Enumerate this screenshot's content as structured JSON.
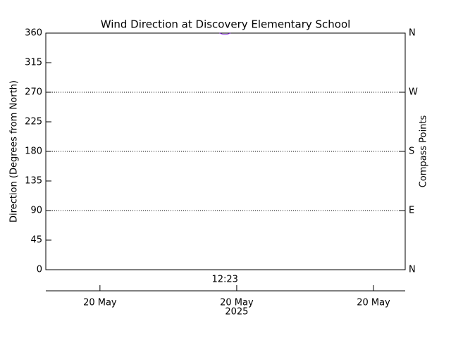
{
  "chart_data": {
    "type": "line",
    "title": "Wind Direction at Discovery Elementary School",
    "y_label": "Direction (Degrees from North)",
    "y2_label": "Compass Points",
    "x": [
      12.437,
      12.447,
      12.457,
      12.467,
      12.477
    ],
    "series": [
      {
        "name": "Wind Direction",
        "color": "#8a2be2",
        "values": [
          360,
          358.5,
          358,
          358.5,
          360
        ]
      }
    ],
    "ylim": [
      0,
      360
    ],
    "yticks": [
      0,
      45,
      90,
      135,
      180,
      225,
      270,
      315,
      360
    ],
    "y2lim": [
      0,
      360
    ],
    "y2ticks": [
      {
        "value": 0,
        "label": "N"
      },
      {
        "value": 90,
        "label": "E"
      },
      {
        "value": 180,
        "label": "S"
      },
      {
        "value": 270,
        "label": "W"
      },
      {
        "value": 360,
        "label": "N"
      }
    ],
    "grid_y": [
      90,
      180,
      270
    ],
    "xlim": [
      11.802,
      13.116
    ],
    "xticks": [
      {
        "value": 12.0,
        "label": "20 May"
      },
      {
        "value": 12.5,
        "label": "20 May"
      },
      {
        "value": 13.0,
        "label": "20 May"
      }
    ],
    "x_year_label": "2025",
    "time_annotation": {
      "x": 12.457,
      "label": "12:23"
    }
  }
}
